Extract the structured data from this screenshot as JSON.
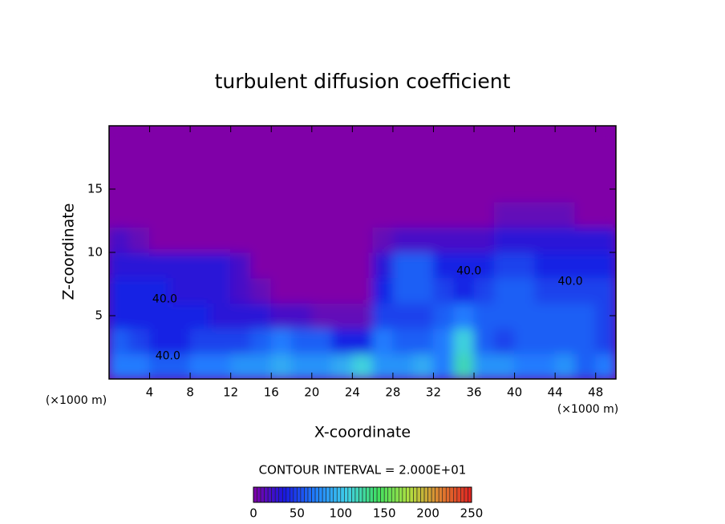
{
  "chart_data": {
    "type": "contour",
    "title": "turbulent diffusion coefficient",
    "x_label": "X-coordinate",
    "y_label": "Z-coordinate",
    "x_unit": "(×1000 m)",
    "x_unit_right": "(×1000 m)",
    "contour_interval": "CONTOUR INTERVAL = 2.000E+01",
    "xlim": [
      0,
      50
    ],
    "xticks": [
      4,
      8,
      12,
      16,
      20,
      24,
      28,
      32,
      36,
      40,
      44,
      48
    ],
    "ylim": [
      0,
      20
    ],
    "yticks": [
      5,
      10,
      15
    ],
    "x": [
      1,
      3,
      5,
      7,
      9,
      11,
      13,
      15,
      17,
      19,
      21,
      23,
      25,
      27,
      29,
      31,
      33,
      35,
      37,
      39,
      41,
      43,
      45,
      47,
      49
    ],
    "y": [
      1,
      3,
      5,
      7,
      9,
      11,
      13,
      15,
      17,
      19
    ],
    "z": [
      [
        70,
        70,
        60,
        60,
        70,
        70,
        80,
        80,
        90,
        80,
        80,
        90,
        110,
        80,
        80,
        90,
        70,
        120,
        80,
        80,
        70,
        70,
        80,
        60,
        70
      ],
      [
        60,
        50,
        40,
        40,
        50,
        50,
        50,
        60,
        70,
        60,
        60,
        40,
        40,
        70,
        60,
        60,
        70,
        110,
        60,
        50,
        60,
        60,
        60,
        60,
        50
      ],
      [
        40,
        40,
        40,
        40,
        40,
        30,
        30,
        30,
        20,
        20,
        10,
        10,
        10,
        50,
        50,
        50,
        60,
        70,
        60,
        60,
        60,
        60,
        60,
        60,
        50
      ],
      [
        40,
        40,
        40,
        30,
        30,
        30,
        20,
        10,
        0,
        0,
        0,
        0,
        0,
        40,
        60,
        60,
        50,
        40,
        50,
        60,
        60,
        50,
        50,
        50,
        50
      ],
      [
        30,
        30,
        30,
        30,
        30,
        30,
        20,
        0,
        0,
        0,
        0,
        0,
        0,
        30,
        60,
        60,
        40,
        40,
        40,
        50,
        50,
        40,
        40,
        40,
        40
      ],
      [
        20,
        10,
        0,
        0,
        0,
        0,
        0,
        0,
        0,
        0,
        0,
        0,
        0,
        10,
        20,
        20,
        20,
        20,
        20,
        30,
        30,
        30,
        30,
        30,
        30
      ],
      [
        0,
        0,
        0,
        0,
        0,
        0,
        0,
        0,
        0,
        0,
        0,
        0,
        0,
        0,
        0,
        0,
        0,
        0,
        0,
        10,
        10,
        10,
        10,
        0,
        0
      ],
      [
        0,
        0,
        0,
        0,
        0,
        0,
        0,
        0,
        0,
        0,
        0,
        0,
        0,
        0,
        0,
        0,
        0,
        0,
        0,
        0,
        0,
        0,
        0,
        0,
        0
      ],
      [
        0,
        0,
        0,
        0,
        0,
        0,
        0,
        0,
        0,
        0,
        0,
        0,
        0,
        0,
        0,
        0,
        0,
        0,
        0,
        0,
        0,
        0,
        0,
        0,
        0
      ],
      [
        0,
        0,
        0,
        0,
        0,
        0,
        0,
        0,
        0,
        0,
        0,
        0,
        0,
        0,
        0,
        0,
        0,
        0,
        0,
        0,
        0,
        0,
        0,
        0,
        0
      ]
    ],
    "clim": [
      0,
      250
    ],
    "cticks": [
      0,
      50,
      100,
      150,
      200,
      250
    ],
    "colormap": [
      "#8000a8",
      "#1818e0",
      "#2080ff",
      "#40d0e8",
      "#40e060",
      "#b0e040",
      "#e08030",
      "#e02020"
    ],
    "annotations": [
      {
        "text": "40.0",
        "x": 5.5,
        "y": 6.3
      },
      {
        "text": "40.0",
        "x": 5.8,
        "y": 1.8
      },
      {
        "text": "40.0",
        "x": 35.5,
        "y": 8.5
      },
      {
        "text": "40.0",
        "x": 45.5,
        "y": 7.7
      }
    ]
  }
}
